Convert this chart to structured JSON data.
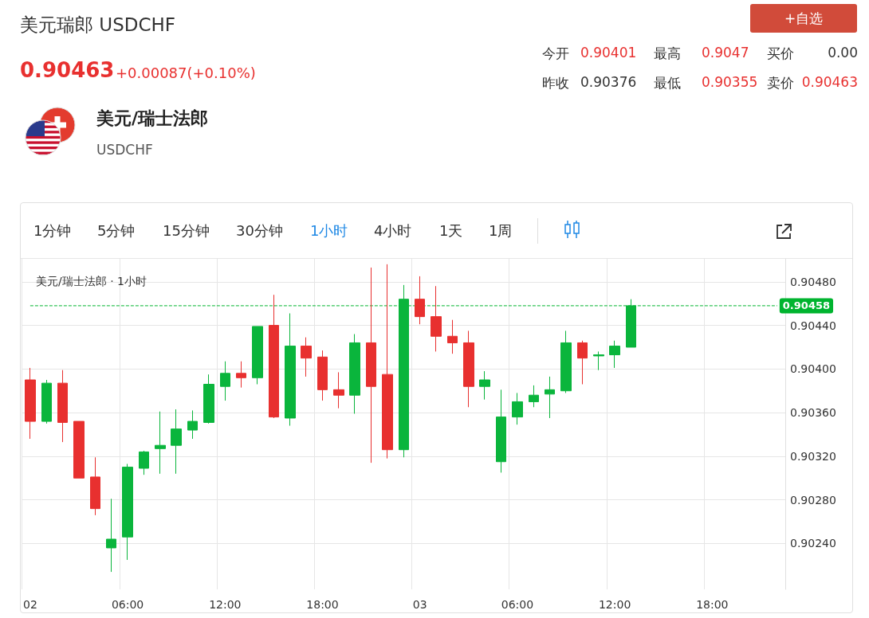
{
  "chart_data": {
    "type": "candlestick",
    "title": "美元/瑞士法郎 · 1小时",
    "annotations": [
      "美元瑞郎 USDCHF",
      "0.90463",
      "+0.00087(+0.10%)",
      "+自选",
      "今开",
      "0.90401",
      "最高",
      "0.9047",
      "买价",
      "0.00",
      "昨收",
      "0.90376",
      "最低",
      "0.90355",
      "卖价",
      "0.90463",
      "美元/瑞士法郎",
      "USDCHF",
      "1分钟",
      "5分钟",
      "15分钟",
      "30分钟",
      "1小时",
      "4小时",
      "1天",
      "1周"
    ],
    "categories": [
      "02",
      null,
      null,
      null,
      null,
      null,
      "06:00",
      null,
      null,
      null,
      null,
      null,
      "12:00",
      null,
      null,
      null,
      null,
      null,
      "18:00",
      null,
      null,
      null,
      null,
      null,
      "03",
      null,
      null,
      null,
      null,
      null,
      "06:00",
      null,
      null,
      null,
      null,
      null,
      "12:00",
      null,
      null,
      null,
      null,
      null,
      "18:00",
      null,
      null,
      null,
      null
    ],
    "ohlc": [
      [
        0.9039,
        0.90401,
        0.90336,
        0.90352
      ],
      [
        0.90352,
        0.9039,
        0.9035,
        0.90387
      ],
      [
        0.90387,
        0.90399,
        0.90333,
        0.90351
      ],
      [
        0.90352,
        0.90352,
        0.903,
        0.903
      ],
      [
        0.90301,
        0.90319,
        0.90266,
        0.90272
      ],
      [
        0.90236,
        0.90281,
        0.90214,
        0.90244
      ],
      [
        0.90246,
        0.90313,
        0.90225,
        0.9031
      ],
      [
        0.90309,
        0.90325,
        0.90303,
        0.90324
      ],
      [
        0.90327,
        0.90361,
        0.90304,
        0.9033
      ],
      [
        0.9033,
        0.90363,
        0.90304,
        0.90345
      ],
      [
        0.90344,
        0.90362,
        0.90336,
        0.90352
      ],
      [
        0.90351,
        0.90395,
        0.9035,
        0.90386
      ],
      [
        0.90384,
        0.90407,
        0.90371,
        0.90396
      ],
      [
        0.90396,
        0.90407,
        0.90383,
        0.90392
      ],
      [
        0.90392,
        0.90439,
        0.90386,
        0.90439
      ],
      [
        0.9044,
        0.90468,
        0.90355,
        0.90356
      ],
      [
        0.90355,
        0.90451,
        0.90348,
        0.90421
      ],
      [
        0.90421,
        0.90429,
        0.90393,
        0.9041
      ],
      [
        0.90411,
        0.90417,
        0.90371,
        0.90381
      ],
      [
        0.90381,
        0.90397,
        0.90364,
        0.90376
      ],
      [
        0.90376,
        0.90432,
        0.90359,
        0.90424
      ],
      [
        0.90424,
        0.90493,
        0.90314,
        0.90384
      ],
      [
        0.90395,
        0.90496,
        0.90318,
        0.90326
      ],
      [
        0.90326,
        0.90477,
        0.90319,
        0.90464
      ],
      [
        0.90464,
        0.90485,
        0.90441,
        0.90448
      ],
      [
        0.90448,
        0.90476,
        0.90416,
        0.9043
      ],
      [
        0.9043,
        0.90445,
        0.90414,
        0.90424
      ],
      [
        0.90424,
        0.90435,
        0.90365,
        0.90384
      ],
      [
        0.90384,
        0.90398,
        0.90372,
        0.9039
      ],
      [
        0.90315,
        0.90381,
        0.90305,
        0.90356
      ],
      [
        0.90356,
        0.90378,
        0.90349,
        0.9037
      ],
      [
        0.9037,
        0.90385,
        0.90365,
        0.90376
      ],
      [
        0.90377,
        0.90393,
        0.90355,
        0.90381
      ],
      [
        0.9038,
        0.90435,
        0.90378,
        0.90424
      ],
      [
        0.90424,
        0.90426,
        0.90386,
        0.9041
      ],
      [
        0.90412,
        0.90416,
        0.90399,
        0.90413
      ],
      [
        0.90413,
        0.90426,
        0.90401,
        0.90421
      ],
      [
        0.9042,
        0.90464,
        0.9042,
        0.90458
      ],
      null,
      null,
      null,
      null,
      null,
      null,
      null,
      null,
      null
    ],
    "ylim": [
      0.90198,
      0.90501
    ],
    "yticks": [
      {
        "value": 0.9024,
        "label": "0.90240"
      },
      {
        "value": 0.9028,
        "label": "0.90280"
      },
      {
        "value": 0.9032,
        "label": "0.90320"
      },
      {
        "value": 0.9036,
        "label": "0.90360"
      },
      {
        "value": 0.904,
        "label": "0.90400"
      },
      {
        "value": 0.9044,
        "label": "0.90440"
      },
      {
        "value": 0.9048,
        "label": "0.90480"
      }
    ],
    "ref_lines": [
      {
        "axis": "y",
        "value": 0.90458,
        "label": "0.90458",
        "color": "#00b42f",
        "line_style": "dashed"
      }
    ],
    "grid": true
  }
}
